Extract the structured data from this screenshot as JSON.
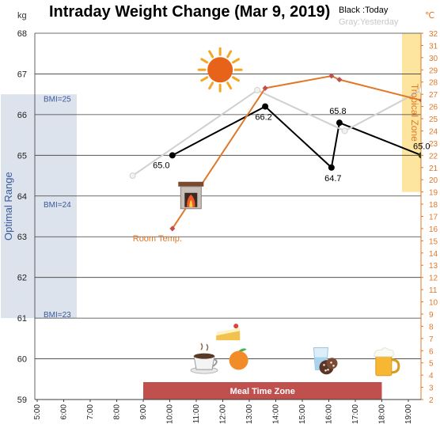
{
  "chart_data": {
    "type": "line",
    "title": "Intraday Weight Change (Mar 9, 2019)",
    "legend": {
      "today": "Black :Today",
      "yesterday": "Gray:Yesterday"
    },
    "y_left": {
      "unit": "kg",
      "min": 59,
      "max": 68,
      "ticks": [
        "59",
        "60",
        "61",
        "62",
        "63",
        "64",
        "65",
        "66",
        "67",
        "68"
      ]
    },
    "y_right": {
      "unit": "℃",
      "min": 2,
      "max": 32,
      "ticks": [
        "2",
        "3",
        "4",
        "5",
        "6",
        "7",
        "8",
        "9",
        "10",
        "11",
        "12",
        "13",
        "14",
        "15",
        "16",
        "17",
        "18",
        "19",
        "20",
        "21",
        "22",
        "23",
        "24",
        "25",
        "26",
        "27",
        "28",
        "29",
        "30",
        "31",
        "32"
      ]
    },
    "x_axis": {
      "min": 5,
      "max": 20,
      "ticks": [
        {
          "v": 5,
          "label": "5:00"
        },
        {
          "v": 6,
          "label": "6:00"
        },
        {
          "v": 7,
          "label": "7:00"
        },
        {
          "v": 8,
          "label": "8:00"
        },
        {
          "v": 9,
          "label": "9:00"
        },
        {
          "v": 10,
          "label": "10:00"
        },
        {
          "v": 11,
          "label": "11:00"
        },
        {
          "v": 12,
          "label": "12:00"
        },
        {
          "v": 13,
          "label": "13:00"
        },
        {
          "v": 14,
          "label": "14:00"
        },
        {
          "v": 15,
          "label": "15:00"
        },
        {
          "v": 16,
          "label": "16:00"
        },
        {
          "v": 17,
          "label": "17:00"
        },
        {
          "v": 18,
          "label": "18:00"
        },
        {
          "v": 19,
          "label": "19:00"
        }
      ]
    },
    "series": [
      {
        "name": "Today",
        "color": "#000000",
        "axis": "left",
        "points": [
          {
            "x": 10.1,
            "y": 65.0,
            "label": "65.0"
          },
          {
            "x": 13.6,
            "y": 66.2,
            "label": "66.2"
          },
          {
            "x": 16.1,
            "y": 64.7,
            "label": "64.7"
          },
          {
            "x": 16.4,
            "y": 65.8,
            "label": "65.8"
          },
          {
            "x": 19.5,
            "y": 65.0,
            "label": "65.0"
          }
        ]
      },
      {
        "name": "Yesterday",
        "color": "#d0d0d0",
        "axis": "left",
        "points": [
          {
            "x": 8.6,
            "y": 64.5
          },
          {
            "x": 13.3,
            "y": 66.6
          },
          {
            "x": 16.6,
            "y": 65.6
          },
          {
            "x": 19.5,
            "y": 66.6
          }
        ]
      },
      {
        "name": "Room Temp.",
        "color": "#e07828",
        "axis": "right",
        "points": [
          {
            "x": 10.1,
            "y": 16
          },
          {
            "x": 13.6,
            "y": 27.5
          },
          {
            "x": 16.1,
            "y": 28.5
          },
          {
            "x": 16.4,
            "y": 28.2
          },
          {
            "x": 19.5,
            "y": 26.5
          }
        ]
      }
    ],
    "zones": {
      "optimal": {
        "label": "Optimal Range",
        "y_from": 61,
        "y_to": 66.5,
        "color": "#dce3ec",
        "bmi_labels": [
          {
            "y": 66.4,
            "text": "BMI=25"
          },
          {
            "y": 63.8,
            "text": "BMI=24"
          },
          {
            "y": 61.1,
            "text": "BMI=23"
          }
        ]
      },
      "tropical": {
        "label": "Tropical Zone",
        "y_from": 19,
        "y_to": 32,
        "color": "#fde5a0"
      },
      "meal": {
        "label": "Meal Time Zone",
        "x_from": 9,
        "x_to": 18,
        "color": "#c0504d"
      }
    },
    "annotations": [
      {
        "text": "Room Temp.",
        "x": 9.5,
        "y": 63.0,
        "color": "#e07828"
      }
    ],
    "icons": [
      {
        "name": "sun-icon",
        "x": 11.9,
        "y": 67.1
      },
      {
        "name": "fireplace-icon",
        "x": 10.8,
        "y": 64.0
      },
      {
        "name": "cake-icon",
        "x": 12.2,
        "y": 60.65
      },
      {
        "name": "coffee-icon",
        "x": 11.3,
        "y": 59.95
      },
      {
        "name": "orange-icon",
        "x": 12.6,
        "y": 60.0
      },
      {
        "name": "water-glass-icon",
        "x": 15.7,
        "y": 60.0
      },
      {
        "name": "cookies-icon",
        "x": 16.0,
        "y": 59.85
      },
      {
        "name": "beer-icon",
        "x": 18.1,
        "y": 59.9
      }
    ]
  }
}
